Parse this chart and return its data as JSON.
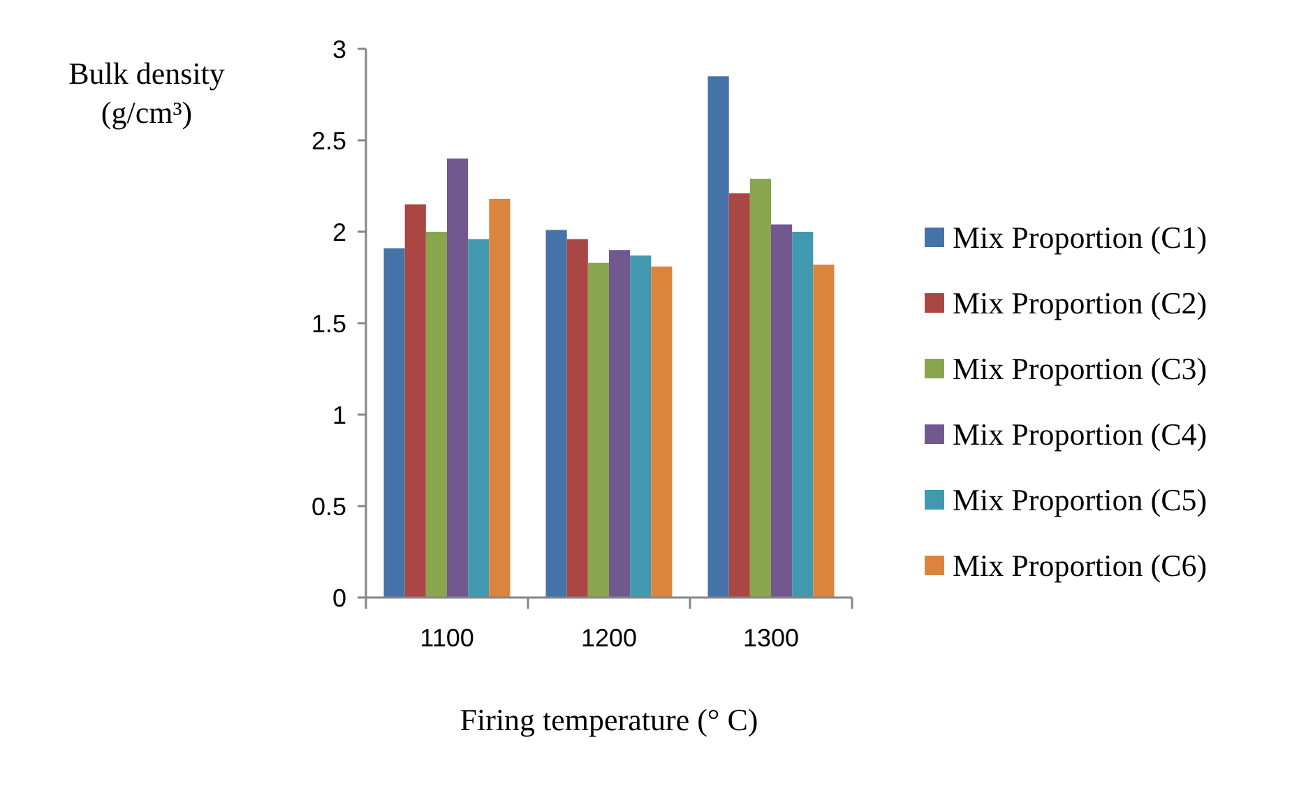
{
  "chart_data": {
    "type": "bar",
    "xlabel": "Firing temperature (° C)",
    "ylabel": "Bulk density (g/cm³)",
    "categories": [
      "1100",
      "1200",
      "1300"
    ],
    "series": [
      {
        "name": "Mix Proportion (C1)",
        "color": "#4572a7",
        "values": [
          1.91,
          2.01,
          2.85
        ]
      },
      {
        "name": "Mix Proportion (C2)",
        "color": "#aa4643",
        "values": [
          2.15,
          1.96,
          2.21
        ]
      },
      {
        "name": "Mix Proportion (C3)",
        "color": "#89a54e",
        "values": [
          2.0,
          1.83,
          2.29
        ]
      },
      {
        "name": "Mix Proportion (C4)",
        "color": "#71588f",
        "values": [
          2.4,
          1.9,
          2.04
        ]
      },
      {
        "name": "Mix Proportion (C5)",
        "color": "#4198af",
        "values": [
          1.96,
          1.87,
          2.0
        ]
      },
      {
        "name": "Mix Proportion (C6)",
        "color": "#db843d",
        "values": [
          2.18,
          1.81,
          1.82
        ]
      }
    ],
    "ylim": [
      0,
      3
    ],
    "yticks": [
      0,
      0.5,
      1,
      1.5,
      2,
      2.5,
      3
    ],
    "grid": false,
    "legend": "right"
  }
}
